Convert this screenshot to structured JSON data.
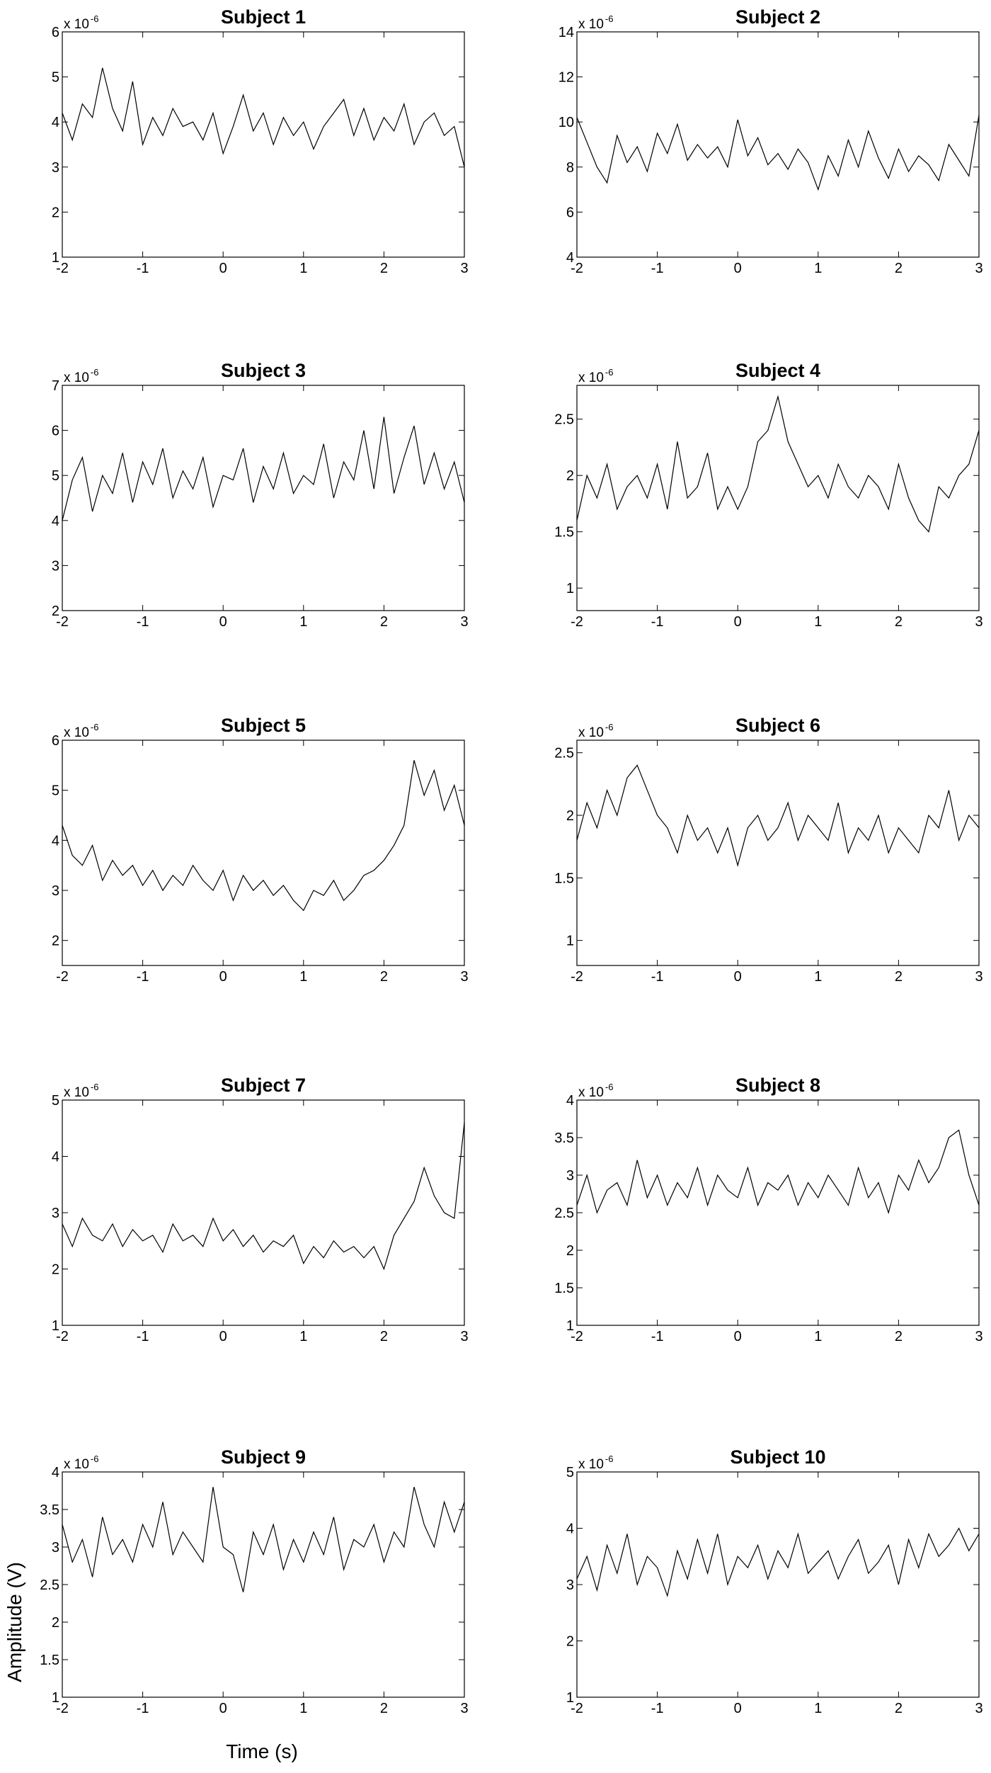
{
  "figure": {
    "ylabel": "Amplitude (V)",
    "xlabel": "Time (s)"
  },
  "chart_data": [
    {
      "type": "line",
      "title": "Subject 1",
      "y_multiplier": "x 10",
      "y_exponent": "-6",
      "color": "#000000",
      "x": [
        -2,
        -1.875,
        -1.75,
        -1.625,
        -1.5,
        -1.375,
        -1.25,
        -1.125,
        -1,
        -0.875,
        -0.75,
        -0.625,
        -0.5,
        -0.375,
        -0.25,
        -0.125,
        0,
        0.125,
        0.25,
        0.375,
        0.5,
        0.625,
        0.75,
        0.875,
        1,
        1.125,
        1.25,
        1.375,
        1.5,
        1.625,
        1.75,
        1.875,
        2,
        2.125,
        2.25,
        2.375,
        2.5,
        2.625,
        2.75,
        2.875,
        3
      ],
      "values": [
        4.2,
        3.6,
        4.4,
        4.1,
        5.2,
        4.3,
        3.8,
        4.9,
        3.5,
        4.1,
        3.7,
        4.3,
        3.9,
        4.0,
        3.6,
        4.2,
        3.3,
        3.9,
        4.6,
        3.8,
        4.2,
        3.5,
        4.1,
        3.7,
        4.0,
        3.4,
        3.9,
        4.2,
        4.5,
        3.7,
        4.3,
        3.6,
        4.1,
        3.8,
        4.4,
        3.5,
        4.0,
        4.2,
        3.7,
        3.9,
        3.0
      ],
      "xlim": [
        -2,
        3
      ],
      "xticks": [
        -2,
        -1,
        0,
        1,
        2,
        3
      ],
      "ylim": [
        1,
        6
      ],
      "yticks": [
        1,
        2,
        3,
        4,
        5,
        6
      ]
    },
    {
      "type": "line",
      "title": "Subject 2",
      "y_multiplier": "x 10",
      "y_exponent": "-6",
      "color": "#000000",
      "x": [
        -2,
        -1.875,
        -1.75,
        -1.625,
        -1.5,
        -1.375,
        -1.25,
        -1.125,
        -1,
        -0.875,
        -0.75,
        -0.625,
        -0.5,
        -0.375,
        -0.25,
        -0.125,
        0,
        0.125,
        0.25,
        0.375,
        0.5,
        0.625,
        0.75,
        0.875,
        1,
        1.125,
        1.25,
        1.375,
        1.5,
        1.625,
        1.75,
        1.875,
        2,
        2.125,
        2.25,
        2.375,
        2.5,
        2.625,
        2.75,
        2.875,
        3
      ],
      "values": [
        10.2,
        9.1,
        8.0,
        7.3,
        9.4,
        8.2,
        8.9,
        7.8,
        9.5,
        8.6,
        9.9,
        8.3,
        9.0,
        8.4,
        8.9,
        8.0,
        10.1,
        8.5,
        9.3,
        8.1,
        8.6,
        7.9,
        8.8,
        8.2,
        7.0,
        8.5,
        7.6,
        9.2,
        8.0,
        9.6,
        8.4,
        7.5,
        8.8,
        7.8,
        8.5,
        8.1,
        7.4,
        9.0,
        8.3,
        7.6,
        10.3
      ],
      "xlim": [
        -2,
        3
      ],
      "xticks": [
        -2,
        -1,
        0,
        1,
        2,
        3
      ],
      "ylim": [
        4,
        14
      ],
      "yticks": [
        4,
        6,
        8,
        10,
        12,
        14
      ]
    },
    {
      "type": "line",
      "title": "Subject 3",
      "y_multiplier": "x 10",
      "y_exponent": "-6",
      "color": "#000000",
      "x": [
        -2,
        -1.875,
        -1.75,
        -1.625,
        -1.5,
        -1.375,
        -1.25,
        -1.125,
        -1,
        -0.875,
        -0.75,
        -0.625,
        -0.5,
        -0.375,
        -0.25,
        -0.125,
        0,
        0.125,
        0.25,
        0.375,
        0.5,
        0.625,
        0.75,
        0.875,
        1,
        1.125,
        1.25,
        1.375,
        1.5,
        1.625,
        1.75,
        1.875,
        2,
        2.125,
        2.25,
        2.375,
        2.5,
        2.625,
        2.75,
        2.875,
        3
      ],
      "values": [
        4.0,
        4.9,
        5.4,
        4.2,
        5.0,
        4.6,
        5.5,
        4.4,
        5.3,
        4.8,
        5.6,
        4.5,
        5.1,
        4.7,
        5.4,
        4.3,
        5.0,
        4.9,
        5.6,
        4.4,
        5.2,
        4.7,
        5.5,
        4.6,
        5.0,
        4.8,
        5.7,
        4.5,
        5.3,
        4.9,
        6.0,
        4.7,
        6.3,
        4.6,
        5.4,
        6.1,
        4.8,
        5.5,
        4.7,
        5.3,
        4.4
      ],
      "xlim": [
        -2,
        3
      ],
      "xticks": [
        -2,
        -1,
        0,
        1,
        2,
        3
      ],
      "ylim": [
        2,
        7
      ],
      "yticks": [
        2,
        3,
        4,
        5,
        6,
        7
      ]
    },
    {
      "type": "line",
      "title": "Subject 4",
      "y_multiplier": "x 10",
      "y_exponent": "-6",
      "color": "#000000",
      "x": [
        -2,
        -1.875,
        -1.75,
        -1.625,
        -1.5,
        -1.375,
        -1.25,
        -1.125,
        -1,
        -0.875,
        -0.75,
        -0.625,
        -0.5,
        -0.375,
        -0.25,
        -0.125,
        0,
        0.125,
        0.25,
        0.375,
        0.5,
        0.625,
        0.75,
        0.875,
        1,
        1.125,
        1.25,
        1.375,
        1.5,
        1.625,
        1.75,
        1.875,
        2,
        2.125,
        2.25,
        2.375,
        2.5,
        2.625,
        2.75,
        2.875,
        3
      ],
      "values": [
        1.6,
        2.0,
        1.8,
        2.1,
        1.7,
        1.9,
        2.0,
        1.8,
        2.1,
        1.7,
        2.3,
        1.8,
        1.9,
        2.2,
        1.7,
        1.9,
        1.7,
        1.9,
        2.3,
        2.4,
        2.7,
        2.3,
        2.1,
        1.9,
        2.0,
        1.8,
        2.1,
        1.9,
        1.8,
        2.0,
        1.9,
        1.7,
        2.1,
        1.8,
        1.6,
        1.5,
        1.9,
        1.8,
        2.0,
        2.1,
        2.4
      ],
      "xlim": [
        -2,
        3
      ],
      "xticks": [
        -2,
        -1,
        0,
        1,
        2,
        3
      ],
      "ylim": [
        0.8,
        2.8
      ],
      "yticks": [
        1,
        1.5,
        2,
        2.5
      ]
    },
    {
      "type": "line",
      "title": "Subject 5",
      "y_multiplier": "x 10",
      "y_exponent": "-6",
      "color": "#000000",
      "x": [
        -2,
        -1.875,
        -1.75,
        -1.625,
        -1.5,
        -1.375,
        -1.25,
        -1.125,
        -1,
        -0.875,
        -0.75,
        -0.625,
        -0.5,
        -0.375,
        -0.25,
        -0.125,
        0,
        0.125,
        0.25,
        0.375,
        0.5,
        0.625,
        0.75,
        0.875,
        1,
        1.125,
        1.25,
        1.375,
        1.5,
        1.625,
        1.75,
        1.875,
        2,
        2.125,
        2.25,
        2.375,
        2.5,
        2.625,
        2.75,
        2.875,
        3
      ],
      "values": [
        4.3,
        3.7,
        3.5,
        3.9,
        3.2,
        3.6,
        3.3,
        3.5,
        3.1,
        3.4,
        3.0,
        3.3,
        3.1,
        3.5,
        3.2,
        3.0,
        3.4,
        2.8,
        3.3,
        3.0,
        3.2,
        2.9,
        3.1,
        2.8,
        2.6,
        3.0,
        2.9,
        3.2,
        2.8,
        3.0,
        3.3,
        3.4,
        3.6,
        3.9,
        4.3,
        5.6,
        4.9,
        5.4,
        4.6,
        5.1,
        4.3
      ],
      "xlim": [
        -2,
        3
      ],
      "xticks": [
        -2,
        -1,
        0,
        1,
        2,
        3
      ],
      "ylim": [
        1.5,
        6
      ],
      "yticks": [
        2,
        3,
        4,
        5,
        6
      ]
    },
    {
      "type": "line",
      "title": "Subject 6",
      "y_multiplier": "x 10",
      "y_exponent": "-6",
      "color": "#000000",
      "x": [
        -2,
        -1.875,
        -1.75,
        -1.625,
        -1.5,
        -1.375,
        -1.25,
        -1.125,
        -1,
        -0.875,
        -0.75,
        -0.625,
        -0.5,
        -0.375,
        -0.25,
        -0.125,
        0,
        0.125,
        0.25,
        0.375,
        0.5,
        0.625,
        0.75,
        0.875,
        1,
        1.125,
        1.25,
        1.375,
        1.5,
        1.625,
        1.75,
        1.875,
        2,
        2.125,
        2.25,
        2.375,
        2.5,
        2.625,
        2.75,
        2.875,
        3
      ],
      "values": [
        1.8,
        2.1,
        1.9,
        2.2,
        2.0,
        2.3,
        2.4,
        2.2,
        2.0,
        1.9,
        1.7,
        2.0,
        1.8,
        1.9,
        1.7,
        1.9,
        1.6,
        1.9,
        2.0,
        1.8,
        1.9,
        2.1,
        1.8,
        2.0,
        1.9,
        1.8,
        2.1,
        1.7,
        1.9,
        1.8,
        2.0,
        1.7,
        1.9,
        1.8,
        1.7,
        2.0,
        1.9,
        2.2,
        1.8,
        2.0,
        1.9
      ],
      "xlim": [
        -2,
        3
      ],
      "xticks": [
        -2,
        -1,
        0,
        1,
        2,
        3
      ],
      "ylim": [
        0.8,
        2.6
      ],
      "yticks": [
        1,
        1.5,
        2,
        2.5
      ]
    },
    {
      "type": "line",
      "title": "Subject 7",
      "y_multiplier": "x 10",
      "y_exponent": "-6",
      "color": "#000000",
      "x": [
        -2,
        -1.875,
        -1.75,
        -1.625,
        -1.5,
        -1.375,
        -1.25,
        -1.125,
        -1,
        -0.875,
        -0.75,
        -0.625,
        -0.5,
        -0.375,
        -0.25,
        -0.125,
        0,
        0.125,
        0.25,
        0.375,
        0.5,
        0.625,
        0.75,
        0.875,
        1,
        1.125,
        1.25,
        1.375,
        1.5,
        1.625,
        1.75,
        1.875,
        2,
        2.125,
        2.25,
        2.375,
        2.5,
        2.625,
        2.75,
        2.875,
        3
      ],
      "values": [
        2.8,
        2.4,
        2.9,
        2.6,
        2.5,
        2.8,
        2.4,
        2.7,
        2.5,
        2.6,
        2.3,
        2.8,
        2.5,
        2.6,
        2.4,
        2.9,
        2.5,
        2.7,
        2.4,
        2.6,
        2.3,
        2.5,
        2.4,
        2.6,
        2.1,
        2.4,
        2.2,
        2.5,
        2.3,
        2.4,
        2.2,
        2.4,
        2.0,
        2.6,
        2.9,
        3.2,
        3.8,
        3.3,
        3.0,
        2.9,
        4.6
      ],
      "xlim": [
        -2,
        3
      ],
      "xticks": [
        -2,
        -1,
        0,
        1,
        2,
        3
      ],
      "ylim": [
        1,
        5
      ],
      "yticks": [
        1,
        2,
        3,
        4,
        5
      ]
    },
    {
      "type": "line",
      "title": "Subject 8",
      "y_multiplier": "x 10",
      "y_exponent": "-6",
      "color": "#000000",
      "x": [
        -2,
        -1.875,
        -1.75,
        -1.625,
        -1.5,
        -1.375,
        -1.25,
        -1.125,
        -1,
        -0.875,
        -0.75,
        -0.625,
        -0.5,
        -0.375,
        -0.25,
        -0.125,
        0,
        0.125,
        0.25,
        0.375,
        0.5,
        0.625,
        0.75,
        0.875,
        1,
        1.125,
        1.25,
        1.375,
        1.5,
        1.625,
        1.75,
        1.875,
        2,
        2.125,
        2.25,
        2.375,
        2.5,
        2.625,
        2.75,
        2.875,
        3
      ],
      "values": [
        2.6,
        3.0,
        2.5,
        2.8,
        2.9,
        2.6,
        3.2,
        2.7,
        3.0,
        2.6,
        2.9,
        2.7,
        3.1,
        2.6,
        3.0,
        2.8,
        2.7,
        3.1,
        2.6,
        2.9,
        2.8,
        3.0,
        2.6,
        2.9,
        2.7,
        3.0,
        2.8,
        2.6,
        3.1,
        2.7,
        2.9,
        2.5,
        3.0,
        2.8,
        3.2,
        2.9,
        3.1,
        3.5,
        3.6,
        3.0,
        2.6
      ],
      "xlim": [
        -2,
        3
      ],
      "xticks": [
        -2,
        -1,
        0,
        1,
        2,
        3
      ],
      "ylim": [
        1,
        4
      ],
      "yticks": [
        1,
        1.5,
        2,
        2.5,
        3,
        3.5,
        4
      ]
    },
    {
      "type": "line",
      "title": "Subject 9",
      "y_multiplier": "x 10",
      "y_exponent": "-6",
      "color": "#000000",
      "x": [
        -2,
        -1.875,
        -1.75,
        -1.625,
        -1.5,
        -1.375,
        -1.25,
        -1.125,
        -1,
        -0.875,
        -0.75,
        -0.625,
        -0.5,
        -0.375,
        -0.25,
        -0.125,
        0,
        0.125,
        0.25,
        0.375,
        0.5,
        0.625,
        0.75,
        0.875,
        1,
        1.125,
        1.25,
        1.375,
        1.5,
        1.625,
        1.75,
        1.875,
        2,
        2.125,
        2.25,
        2.375,
        2.5,
        2.625,
        2.75,
        2.875,
        3
      ],
      "values": [
        3.3,
        2.8,
        3.1,
        2.6,
        3.4,
        2.9,
        3.1,
        2.8,
        3.3,
        3.0,
        3.6,
        2.9,
        3.2,
        3.0,
        2.8,
        3.8,
        3.0,
        2.9,
        2.4,
        3.2,
        2.9,
        3.3,
        2.7,
        3.1,
        2.8,
        3.2,
        2.9,
        3.4,
        2.7,
        3.1,
        3.0,
        3.3,
        2.8,
        3.2,
        3.0,
        3.8,
        3.3,
        3.0,
        3.6,
        3.2,
        3.6
      ],
      "xlim": [
        -2,
        3
      ],
      "xticks": [
        -2,
        -1,
        0,
        1,
        2,
        3
      ],
      "ylim": [
        1,
        4
      ],
      "yticks": [
        1,
        1.5,
        2,
        2.5,
        3,
        3.5,
        4
      ]
    },
    {
      "type": "line",
      "title": "Subject 10",
      "y_multiplier": "x 10",
      "y_exponent": "-6",
      "color": "#000000",
      "x": [
        -2,
        -1.875,
        -1.75,
        -1.625,
        -1.5,
        -1.375,
        -1.25,
        -1.125,
        -1,
        -0.875,
        -0.75,
        -0.625,
        -0.5,
        -0.375,
        -0.25,
        -0.125,
        0,
        0.125,
        0.25,
        0.375,
        0.5,
        0.625,
        0.75,
        0.875,
        1,
        1.125,
        1.25,
        1.375,
        1.5,
        1.625,
        1.75,
        1.875,
        2,
        2.125,
        2.25,
        2.375,
        2.5,
        2.625,
        2.75,
        2.875,
        3
      ],
      "values": [
        3.1,
        3.5,
        2.9,
        3.7,
        3.2,
        3.9,
        3.0,
        3.5,
        3.3,
        2.8,
        3.6,
        3.1,
        3.8,
        3.2,
        3.9,
        3.0,
        3.5,
        3.3,
        3.7,
        3.1,
        3.6,
        3.3,
        3.9,
        3.2,
        3.4,
        3.6,
        3.1,
        3.5,
        3.8,
        3.2,
        3.4,
        3.7,
        3.0,
        3.8,
        3.3,
        3.9,
        3.5,
        3.7,
        4.0,
        3.6,
        3.9
      ],
      "xlim": [
        -2,
        3
      ],
      "xticks": [
        -2,
        -1,
        0,
        1,
        2,
        3
      ],
      "ylim": [
        1,
        5
      ],
      "yticks": [
        1,
        2,
        3,
        4,
        5
      ]
    }
  ]
}
